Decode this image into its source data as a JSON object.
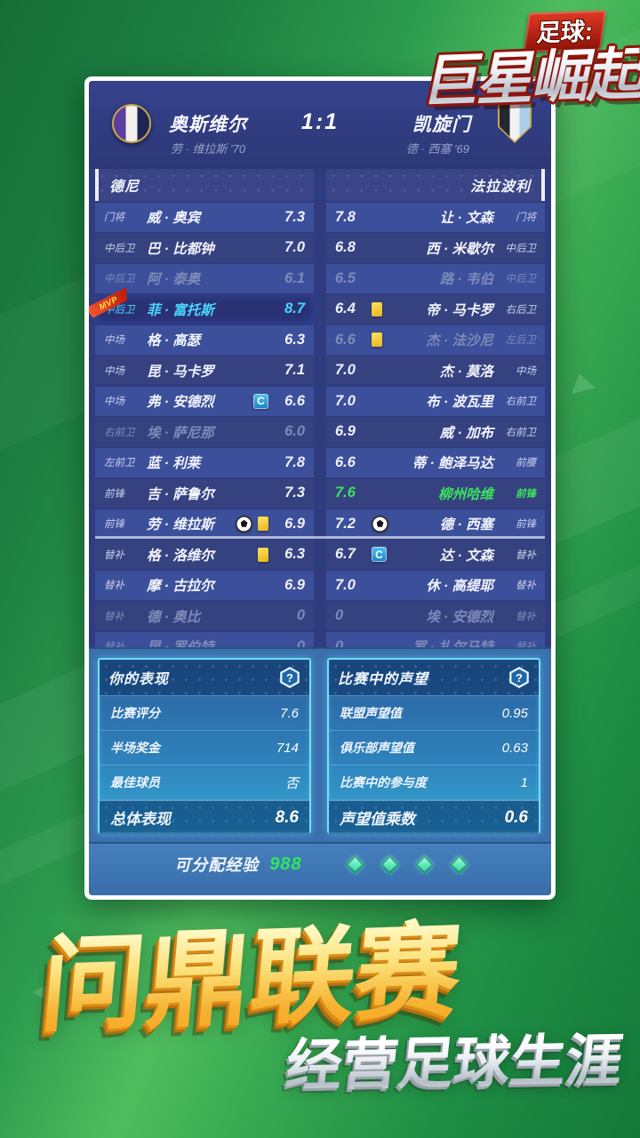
{
  "logo": {
    "top": "足球:",
    "main": "巨星崛起"
  },
  "match": {
    "score": "1:1",
    "home": {
      "name": "奥斯维尔",
      "scorer": "劳 · 维拉斯 '70"
    },
    "away": {
      "name": "凯旋门",
      "scorer": "德 · 西塞 '69"
    }
  },
  "lineups": {
    "home_header": "德尼",
    "away_header": "法拉波利",
    "home": [
      {
        "pos": "门将",
        "name": "威 · 奥宾",
        "rating": "7.3",
        "state": ""
      },
      {
        "pos": "中后卫",
        "name": "巴 · 比都钟",
        "rating": "7.0",
        "state": ""
      },
      {
        "pos": "中后卫",
        "name": "阿 · 泰奥",
        "rating": "6.1",
        "state": "dim"
      },
      {
        "pos": "中后卫",
        "name": "菲 · 富托斯",
        "rating": "8.7",
        "state": "mvp",
        "mvp_label": "MVP"
      },
      {
        "pos": "中场",
        "name": "格 · 高瑟",
        "rating": "6.3",
        "state": ""
      },
      {
        "pos": "中场",
        "name": "昆 · 马卡罗",
        "rating": "7.1",
        "state": ""
      },
      {
        "pos": "中场",
        "name": "弗 · 安德烈",
        "rating": "6.6",
        "state": "",
        "cap": "C"
      },
      {
        "pos": "右前卫",
        "name": "埃 · 萨尼那",
        "rating": "6.0",
        "state": "dim"
      },
      {
        "pos": "左前卫",
        "name": "蓝 · 利莱",
        "rating": "7.8",
        "state": ""
      },
      {
        "pos": "前锋",
        "name": "吉 · 萨鲁尔",
        "rating": "7.3",
        "state": ""
      },
      {
        "pos": "前锋",
        "name": "劳 · 维拉斯",
        "rating": "6.9",
        "state": "",
        "goal": true,
        "yellow": true
      },
      {
        "pos": "替补",
        "name": "格 · 洛维尔",
        "rating": "6.3",
        "state": "",
        "yellow": true
      },
      {
        "pos": "替补",
        "name": "摩 · 古拉尔",
        "rating": "6.9",
        "state": ""
      },
      {
        "pos": "替补",
        "name": "德 · 奥比",
        "rating": "0",
        "state": "dim"
      },
      {
        "pos": "替补",
        "name": "昆 · 罗伯特",
        "rating": "0",
        "state": "dim"
      }
    ],
    "away": [
      {
        "pos": "门将",
        "name": "让 · 文森",
        "rating": "7.8",
        "state": ""
      },
      {
        "pos": "中后卫",
        "name": "西 · 米歇尔",
        "rating": "6.8",
        "state": ""
      },
      {
        "pos": "中后卫",
        "name": "路 · 韦伯",
        "rating": "6.5",
        "state": "dim"
      },
      {
        "pos": "右后卫",
        "name": "帝 · 马卡罗",
        "rating": "6.4",
        "state": "",
        "yellow": true
      },
      {
        "pos": "左后卫",
        "name": "杰 · 法沙尼",
        "rating": "6.6",
        "state": "dim",
        "yellow": true
      },
      {
        "pos": "中场",
        "name": "杰 · 莫洛",
        "rating": "7.0",
        "state": ""
      },
      {
        "pos": "右前卫",
        "name": "布 · 波瓦里",
        "rating": "7.0",
        "state": ""
      },
      {
        "pos": "右前卫",
        "name": "威 · 加布",
        "rating": "6.9",
        "state": ""
      },
      {
        "pos": "前腰",
        "name": "蒂 · 鲍泽马达",
        "rating": "6.6",
        "state": ""
      },
      {
        "pos": "前锋",
        "name": "柳州哈维",
        "rating": "7.6",
        "state": "green"
      },
      {
        "pos": "前锋",
        "name": "德 · 西塞",
        "rating": "7.2",
        "state": "",
        "goal": true
      },
      {
        "pos": "替补",
        "name": "达 · 文森",
        "rating": "6.7",
        "state": "",
        "cap": "C"
      },
      {
        "pos": "替补",
        "name": "休 · 高缇耶",
        "rating": "7.0",
        "state": ""
      },
      {
        "pos": "替补",
        "name": "埃 · 安德烈",
        "rating": "0",
        "state": "dim"
      },
      {
        "pos": "替补",
        "name": "罗 · 扎尔马特",
        "rating": "0",
        "state": "dim"
      }
    ]
  },
  "performance": {
    "title": "你的表现",
    "help_icon": "?",
    "rows": [
      {
        "label": "比赛评分",
        "value": "7.6",
        "em": ""
      },
      {
        "label": "半场奖金",
        "value": "714",
        "em": ""
      },
      {
        "label": "最佳球员",
        "value": "否",
        "em": ""
      },
      {
        "label": "总体表现",
        "value": "8.6",
        "em": "em"
      }
    ]
  },
  "reputation": {
    "title": "比赛中的声望",
    "help_icon": "?",
    "rows": [
      {
        "label": "联盟声望值",
        "value": "0.95",
        "em": ""
      },
      {
        "label": "俱乐部声望值",
        "value": "0.63",
        "em": ""
      },
      {
        "label": "比赛中的参与度",
        "value": "1",
        "em": ""
      },
      {
        "label": "声望值乘数",
        "value": "0.6",
        "em": "em"
      }
    ]
  },
  "exp": {
    "label": "可分配经验",
    "value": "988",
    "gem_count": 4
  },
  "promo": {
    "line1": "问鼎联赛",
    "line2": "经营足球生涯"
  },
  "colors": {
    "accent_green": "#3ce25f",
    "mvp_cyan": "#49d6ff",
    "exp_green": "#2fe563",
    "panel_navy": "#303c80",
    "stat_border": "#76ddfb",
    "gold_text": "#f6b434"
  }
}
